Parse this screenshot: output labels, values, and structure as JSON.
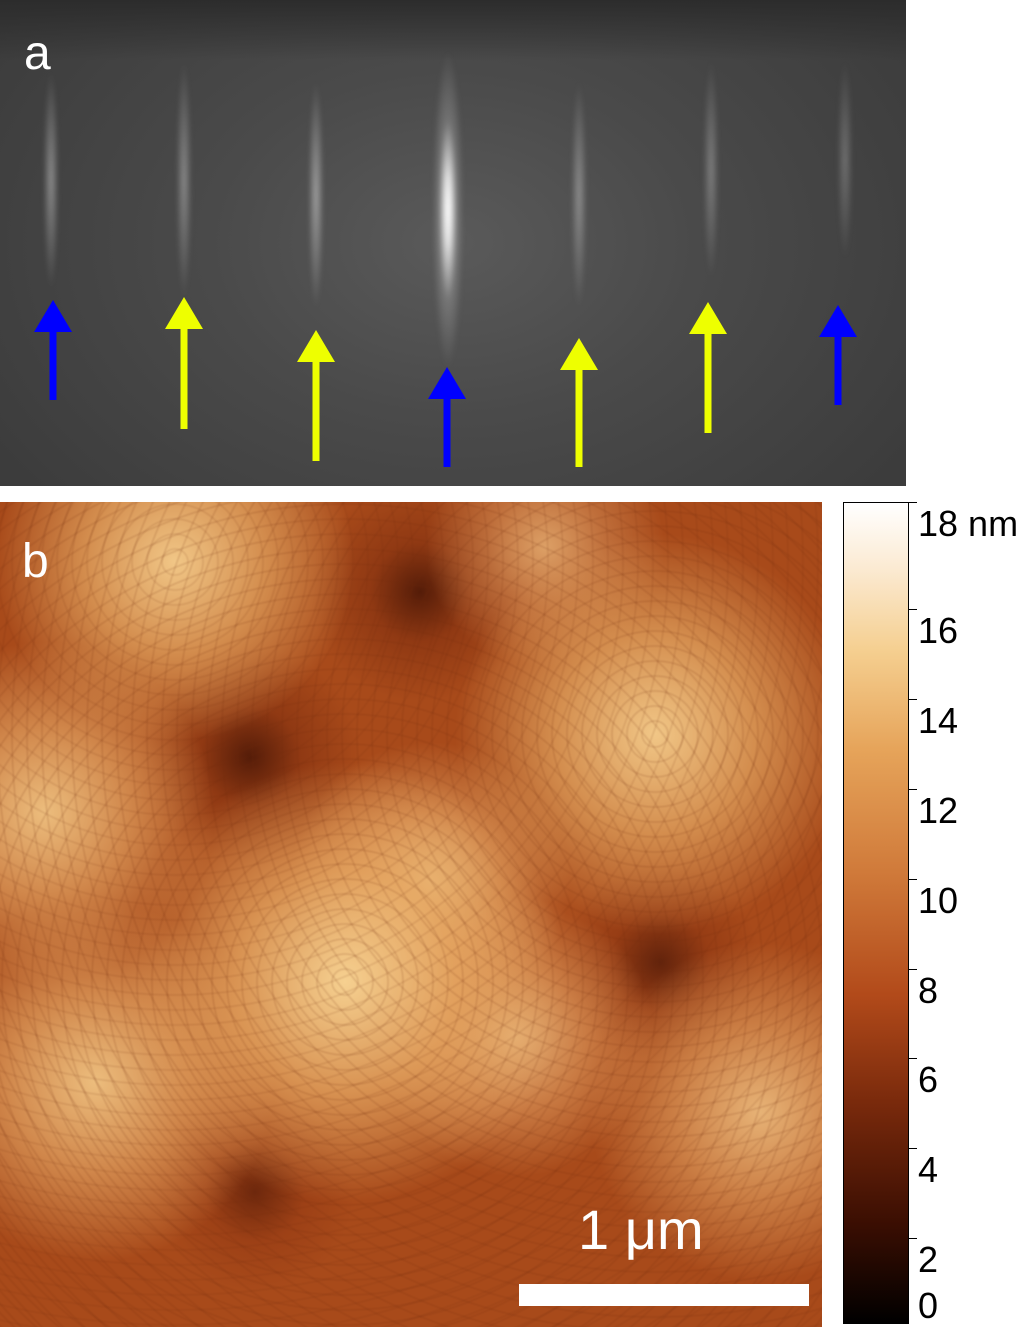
{
  "panel_a": {
    "label": "a",
    "arrow_colors": {
      "blue": "#0000ff",
      "yellow": "#eeff00"
    },
    "arrows": [
      {
        "color": "blue"
      },
      {
        "color": "yellow"
      },
      {
        "color": "yellow"
      },
      {
        "color": "blue"
      },
      {
        "color": "yellow"
      },
      {
        "color": "yellow"
      },
      {
        "color": "blue"
      }
    ]
  },
  "panel_b": {
    "label": "b",
    "scale_bar_label": "1 μm"
  },
  "colorbar": {
    "unit_label": "18 nm",
    "ticks": [
      "16",
      "14",
      "12",
      "10",
      "8",
      "6",
      "4",
      "2",
      "0"
    ]
  }
}
